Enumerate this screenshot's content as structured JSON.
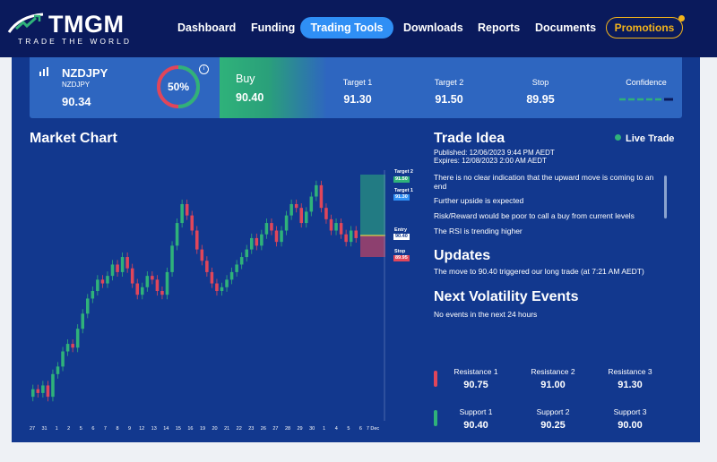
{
  "header": {
    "brand": "TMGM",
    "tagline": "TRADE THE WORLD",
    "nav": [
      "Dashboard",
      "Funding",
      "Trading Tools",
      "Downloads",
      "Reports",
      "Documents"
    ],
    "active_nav": "Trading Tools",
    "promo": "Promotions"
  },
  "instrument": {
    "symbol": "NZDJPY",
    "subtitle": "NZDJPY",
    "price": "90.34",
    "gauge_value": "50%",
    "gauge_fraction": 0.5,
    "info": "i",
    "buy_label": "Buy",
    "buy_value": "90.40",
    "target1_label": "Target 1",
    "target1_value": "91.30",
    "target2_label": "Target 2",
    "target2_value": "91.50",
    "stop_label": "Stop",
    "stop_value": "89.95",
    "confidence_label": "Confidence"
  },
  "chart": {
    "title": "Market Chart",
    "x_ticks": [
      "27",
      "31",
      "1",
      "2",
      "5",
      "6",
      "7",
      "8",
      "9",
      "12",
      "13",
      "14",
      "15",
      "16",
      "19",
      "20",
      "21",
      "22",
      "23",
      "26",
      "27",
      "28",
      "29",
      "30",
      "1",
      "4",
      "5",
      "6",
      "7 Dec"
    ],
    "markers": [
      {
        "label": "Target 2",
        "value": "91.50",
        "color": "#2fb27a"
      },
      {
        "label": "Target 1",
        "value": "91.30",
        "color": "#2f8ff5"
      },
      {
        "label": "Entry",
        "value": "90.40",
        "color": "#ffffff"
      },
      {
        "label": "Stop",
        "value": "89.95",
        "color": "#e0465a"
      }
    ]
  },
  "chart_data": {
    "type": "candlestick",
    "x_ticks": [
      "27",
      "31",
      "1",
      "2",
      "5",
      "6",
      "7",
      "8",
      "9",
      "12",
      "13",
      "14",
      "15",
      "16",
      "19",
      "20",
      "21",
      "22",
      "23",
      "26",
      "27",
      "28",
      "29",
      "30",
      "1",
      "4",
      "5",
      "6",
      "7 Dec"
    ],
    "close": [
      86.4,
      86.3,
      86.5,
      86.2,
      86.8,
      87.0,
      87.4,
      87.6,
      87.5,
      88.0,
      88.4,
      88.8,
      89.0,
      89.3,
      89.2,
      89.4,
      89.7,
      89.5,
      89.9,
      89.6,
      89.2,
      88.9,
      89.1,
      89.4,
      89.3,
      89.0,
      88.9,
      89.5,
      90.2,
      90.8,
      91.3,
      91.0,
      90.6,
      90.1,
      89.8,
      89.5,
      89.2,
      89.0,
      89.1,
      89.3,
      89.5,
      89.7,
      89.9,
      90.1,
      90.4,
      90.2,
      90.5,
      90.8,
      90.6,
      90.3,
      90.6,
      91.0,
      91.3,
      91.2,
      90.8,
      91.1,
      91.5,
      91.8,
      91.2,
      90.9,
      90.6,
      90.8,
      90.5,
      90.3,
      90.6,
      90.4
    ],
    "entry": 90.4,
    "target1": 91.3,
    "target2": 91.5,
    "stop": 89.95
  },
  "trade_idea": {
    "title": "Trade Idea",
    "live": "Live Trade",
    "published": "Published: 12/06/2023 9:44 PM AEDT",
    "expires": "Expires: 12/08/2023 2:00 AM AEDT",
    "lines": [
      "There is no clear indication that the upward move is coming to an end",
      "Further upside is expected",
      "Risk/Reward would be poor to call a buy from current levels",
      "The RSI is trending higher"
    ]
  },
  "updates": {
    "title": "Updates",
    "text": "The move to 90.40 triggered our long trade (at 7:21 AM AEDT)"
  },
  "volatility": {
    "title": "Next Volatility Events",
    "text": "No events in the next 24 hours"
  },
  "levels": {
    "resistance": [
      {
        "label": "Resistance 1",
        "value": "90.75"
      },
      {
        "label": "Resistance 2",
        "value": "91.00"
      },
      {
        "label": "Resistance 3",
        "value": "91.30"
      }
    ],
    "support": [
      {
        "label": "Support 1",
        "value": "90.40"
      },
      {
        "label": "Support 2",
        "value": "90.25"
      },
      {
        "label": "Support 3",
        "value": "90.00"
      }
    ]
  },
  "colors": {
    "navy": "#0a1a5c",
    "panel": "#12388e",
    "accent": "#2f8ff5",
    "up": "#2fb27a",
    "down": "#e0465a",
    "promo": "#f2b31b"
  }
}
